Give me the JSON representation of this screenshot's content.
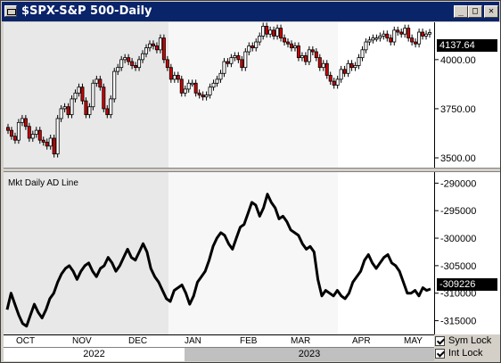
{
  "window": {
    "title": "$SPX-S&P 500-Daily",
    "buttons": {
      "minimize": "_",
      "maximize": "□",
      "close": "✕"
    }
  },
  "price_panel": {
    "current_price": "4137.64",
    "y_ticks": [
      "4000.00",
      "3750.00",
      "3500.00"
    ]
  },
  "ad_panel": {
    "label": "Mkt Daily AD Line",
    "current_value": "-309226",
    "y_ticks": [
      "-290000",
      "-295000",
      "-300000",
      "-305000",
      "-310000",
      "-315000"
    ]
  },
  "x_axis": {
    "months": [
      "OCT",
      "NOV",
      "DEC",
      "JAN",
      "FEB",
      "MAR",
      "APR",
      "MAY"
    ],
    "years": [
      "2022",
      "2023"
    ]
  },
  "locks": {
    "sym_lock": "Sym Lock",
    "int_lock": "Int Lock"
  },
  "chart_data": [
    {
      "type": "candlestick",
      "title": "$SPX-S&P 500-Daily",
      "last": 4137.64,
      "ylim": [
        3450,
        4190
      ],
      "y_ticks": [
        4000,
        3750,
        3500
      ],
      "x_months": [
        "OCT",
        "NOV",
        "DEC",
        "JAN",
        "FEB",
        "MAR",
        "APR",
        "MAY"
      ],
      "closes": [
        3640,
        3610,
        3590,
        3680,
        3700,
        3660,
        3600,
        3620,
        3640,
        3590,
        3580,
        3560,
        3600,
        3520,
        3700,
        3750,
        3760,
        3720,
        3800,
        3830,
        3860,
        3790,
        3720,
        3760,
        3880,
        3900,
        3860,
        3750,
        3720,
        3800,
        3940,
        3960,
        4000,
        4010,
        3990,
        3970,
        3960,
        4000,
        4030,
        4060,
        4080,
        4070,
        4050,
        4110,
        4000,
        3960,
        3900,
        3920,
        3900,
        3830,
        3850,
        3880,
        3880,
        3830,
        3820,
        3810,
        3820,
        3860,
        3880,
        3900,
        3930,
        3990,
        3980,
        4010,
        4020,
        4000,
        3960,
        4040,
        4070,
        4060,
        4090,
        4120,
        4170,
        4130,
        4150,
        4120,
        4160,
        4110,
        4090,
        4080,
        4060,
        4070,
        4010,
        4020,
        3990,
        4050,
        4040,
        4010,
        3960,
        3980,
        3920,
        3890,
        3870,
        3900,
        3950,
        3930,
        3980,
        3960,
        3970,
        4010,
        4050,
        4090,
        4100,
        4110,
        4110,
        4120,
        4130,
        4110,
        4090,
        4150,
        4140,
        4130,
        4160,
        4110,
        4090,
        4080,
        4140,
        4120,
        4130,
        4138
      ],
      "up_color": "#ffffff",
      "down_color": "#cc0000"
    },
    {
      "type": "line",
      "title": "Mkt Daily AD Line",
      "last": -309226,
      "ylim": [
        -317500,
        -288000
      ],
      "y_ticks": [
        -290000,
        -295000,
        -300000,
        -305000,
        -310000,
        -315000
      ],
      "values": [
        -313000,
        -310000,
        -312000,
        -314000,
        -315500,
        -316000,
        -314000,
        -312000,
        -313500,
        -314500,
        -313000,
        -311000,
        -310000,
        -308000,
        -306500,
        -305500,
        -305000,
        -306000,
        -307500,
        -306000,
        -305000,
        -304500,
        -306000,
        -307000,
        -305500,
        -305000,
        -303500,
        -304500,
        -306000,
        -305000,
        -303500,
        -302000,
        -303500,
        -304000,
        -302500,
        -301000,
        -302500,
        -305500,
        -307000,
        -308000,
        -309500,
        -311000,
        -311500,
        -309500,
        -309000,
        -308500,
        -310000,
        -312000,
        -310500,
        -308000,
        -307000,
        -306000,
        -304000,
        -301500,
        -300000,
        -299000,
        -299500,
        -301000,
        -302000,
        -300000,
        -298000,
        -297500,
        -295500,
        -293500,
        -294000,
        -296000,
        -294500,
        -292000,
        -293500,
        -294500,
        -296500,
        -296000,
        -297000,
        -298500,
        -299000,
        -299500,
        -301000,
        -302000,
        -301500,
        -302500,
        -307500,
        -310500,
        -309500,
        -310000,
        -310500,
        -309500,
        -310500,
        -311000,
        -310000,
        -308000,
        -307000,
        -306000,
        -304000,
        -303000,
        -304500,
        -305500,
        -304500,
        -303500,
        -303000,
        -304500,
        -305000,
        -306000,
        -308000,
        -310000,
        -310000,
        -309500,
        -310500,
        -309000,
        -309500,
        -309226
      ],
      "color": "#000000"
    }
  ]
}
